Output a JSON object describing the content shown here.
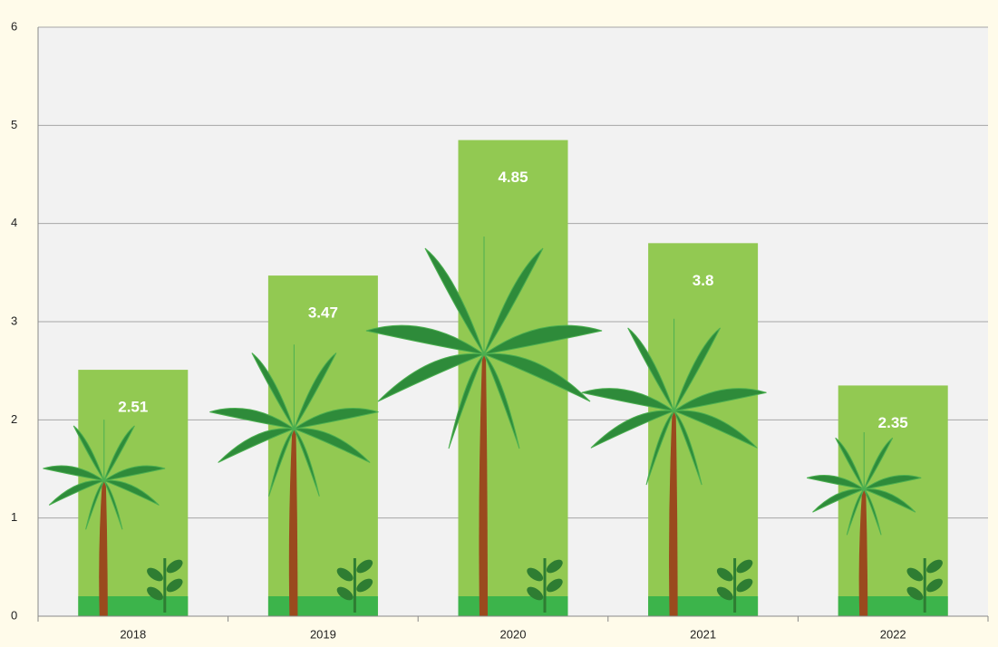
{
  "chart_data": {
    "type": "bar",
    "categories": [
      "2018",
      "2019",
      "2020",
      "2021",
      "2022"
    ],
    "values": [
      2.51,
      3.47,
      4.85,
      3.8,
      2.35
    ],
    "color": "#92c952",
    "ylim": [
      0,
      6
    ],
    "yticks": [
      0,
      1,
      2,
      3,
      4,
      5,
      6
    ],
    "grid": true
  }
}
